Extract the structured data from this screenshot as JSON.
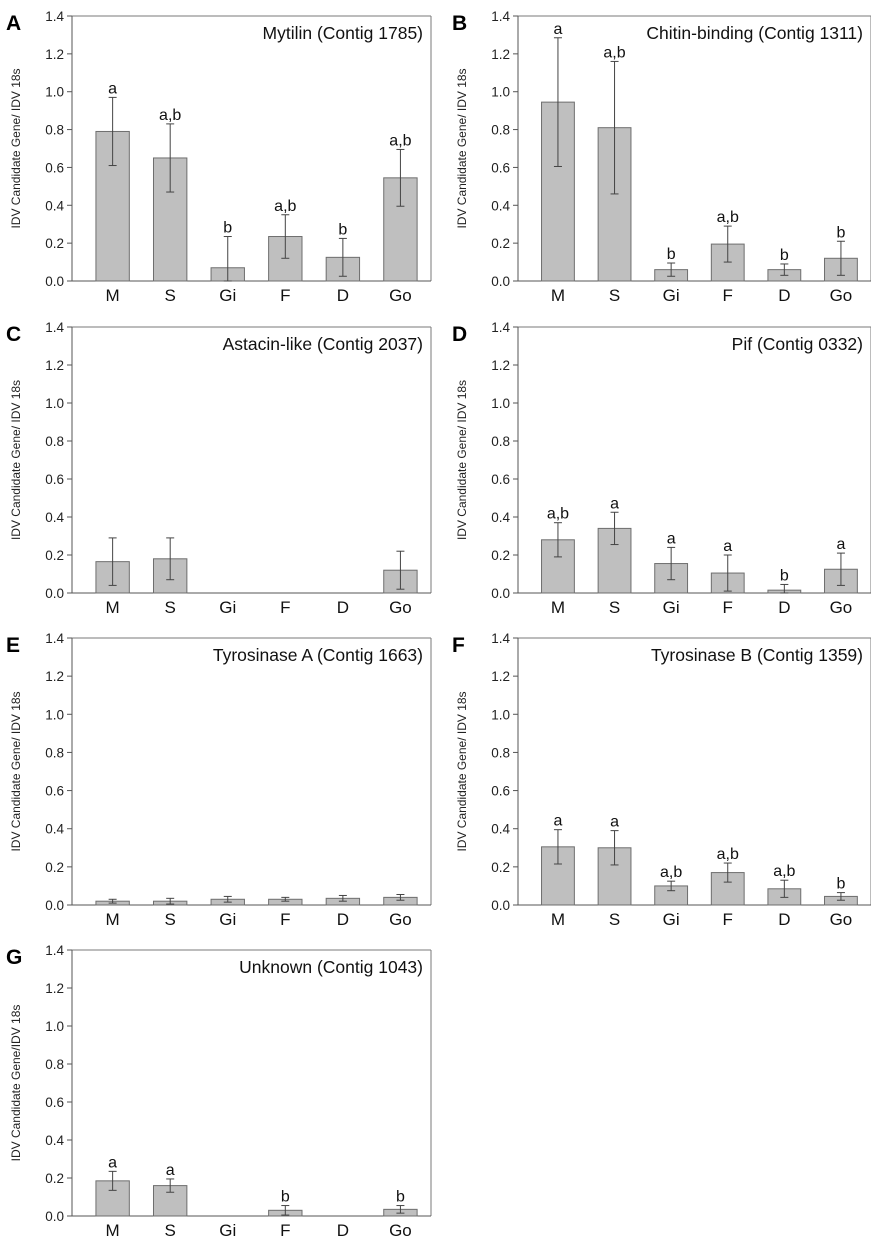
{
  "figure": {
    "ylabel": "IDV Candidate Gene/ IDV 18s",
    "ylabel_alt": "IDV Candidate Gene/IDV 18s"
  },
  "chart_data": [
    {
      "type": "bar",
      "panel": "A",
      "title": "Mytilin (Contig 1785)",
      "ylabel": "IDV Candidate Gene/ IDV 18s",
      "categories": [
        "M",
        "S",
        "Gi",
        "F",
        "D",
        "Go"
      ],
      "values": [
        0.79,
        0.65,
        0.07,
        0.235,
        0.125,
        0.545
      ],
      "errors": [
        0.18,
        0.18,
        0.165,
        0.115,
        0.1,
        0.15
      ],
      "letters": [
        "a",
        "a,b",
        "b",
        "a,b",
        "b",
        "a,b"
      ],
      "ylim": [
        0,
        1.4
      ],
      "yticks": [
        "0.0",
        "0.2",
        "0.4",
        "0.6",
        "0.8",
        "1.0",
        "1.2",
        "1.4"
      ]
    },
    {
      "type": "bar",
      "panel": "B",
      "title": "Chitin-binding (Contig 1311)",
      "ylabel": "IDV Candidate Gene/ IDV 18s",
      "categories": [
        "M",
        "S",
        "Gi",
        "F",
        "D",
        "Go"
      ],
      "values": [
        0.945,
        0.81,
        0.06,
        0.195,
        0.06,
        0.12
      ],
      "errors": [
        0.34,
        0.35,
        0.035,
        0.095,
        0.03,
        0.09
      ],
      "letters": [
        "a",
        "a,b",
        "b",
        "a,b",
        "b",
        "b"
      ],
      "ylim": [
        0,
        1.4
      ],
      "yticks": [
        "0.0",
        "0.2",
        "0.4",
        "0.6",
        "0.8",
        "1.0",
        "1.2",
        "1.4"
      ]
    },
    {
      "type": "bar",
      "panel": "C",
      "title": "Astacin-like (Contig 2037)",
      "ylabel": "IDV Candidate Gene/ IDV 18s",
      "categories": [
        "M",
        "S",
        "Gi",
        "F",
        "D",
        "Go"
      ],
      "values": [
        0.165,
        0.18,
        0,
        0,
        0,
        0.12
      ],
      "errors": [
        0.125,
        0.11,
        null,
        null,
        null,
        0.1
      ],
      "letters": [
        "",
        "",
        "",
        "",
        "",
        ""
      ],
      "ylim": [
        0,
        1.4
      ],
      "yticks": [
        "0.0",
        "0.2",
        "0.4",
        "0.6",
        "0.8",
        "1.0",
        "1.2",
        "1.4"
      ]
    },
    {
      "type": "bar",
      "panel": "D",
      "title": "Pif (Contig 0332)",
      "ylabel": "IDV Candidate Gene/ IDV 18s",
      "categories": [
        "M",
        "S",
        "Gi",
        "F",
        "D",
        "Go"
      ],
      "values": [
        0.28,
        0.34,
        0.155,
        0.105,
        0.015,
        0.125
      ],
      "errors": [
        0.09,
        0.085,
        0.085,
        0.095,
        0.03,
        0.085
      ],
      "letters": [
        "a,b",
        "a",
        "a",
        "a",
        "b",
        "a"
      ],
      "ylim": [
        0,
        1.4
      ],
      "yticks": [
        "0.0",
        "0.2",
        "0.4",
        "0.6",
        "0.8",
        "1.0",
        "1.2",
        "1.4"
      ]
    },
    {
      "type": "bar",
      "panel": "E",
      "title": "Tyrosinase A (Contig 1663)",
      "ylabel": "IDV Candidate Gene/ IDV 18s",
      "categories": [
        "M",
        "S",
        "Gi",
        "F",
        "D",
        "Go"
      ],
      "values": [
        0.02,
        0.02,
        0.03,
        0.03,
        0.035,
        0.04
      ],
      "errors": [
        0.01,
        0.015,
        0.015,
        0.01,
        0.015,
        0.015
      ],
      "letters": [
        "",
        "",
        "",
        "",
        "",
        ""
      ],
      "ylim": [
        0,
        1.4
      ],
      "yticks": [
        "0.0",
        "0.2",
        "0.4",
        "0.6",
        "0.8",
        "1.0",
        "1.2",
        "1.4"
      ]
    },
    {
      "type": "bar",
      "panel": "F",
      "title": "Tyrosinase B (Contig 1359)",
      "ylabel": "IDV Candidate Gene/ IDV 18s",
      "categories": [
        "M",
        "S",
        "Gi",
        "F",
        "D",
        "Go"
      ],
      "values": [
        0.305,
        0.3,
        0.1,
        0.17,
        0.085,
        0.045
      ],
      "errors": [
        0.09,
        0.09,
        0.025,
        0.05,
        0.045,
        0.02
      ],
      "letters": [
        "a",
        "a",
        "a,b",
        "a,b",
        "a,b",
        "b"
      ],
      "ylim": [
        0,
        1.4
      ],
      "yticks": [
        "0.0",
        "0.2",
        "0.4",
        "0.6",
        "0.8",
        "1.0",
        "1.2",
        "1.4"
      ]
    },
    {
      "type": "bar",
      "panel": "G",
      "title": "Unknown (Contig 1043)",
      "ylabel": "IDV Candidate Gene/IDV 18s",
      "categories": [
        "M",
        "S",
        "Gi",
        "F",
        "D",
        "Go"
      ],
      "values": [
        0.185,
        0.16,
        0,
        0.03,
        0,
        0.035
      ],
      "errors": [
        0.05,
        0.035,
        null,
        0.025,
        null,
        0.02
      ],
      "letters": [
        "a",
        "a",
        "",
        "b",
        "",
        "b"
      ],
      "ylim": [
        0,
        1.4
      ],
      "yticks": [
        "0.0",
        "0.2",
        "0.4",
        "0.6",
        "0.8",
        "1.0",
        "1.2",
        "1.4"
      ]
    }
  ]
}
